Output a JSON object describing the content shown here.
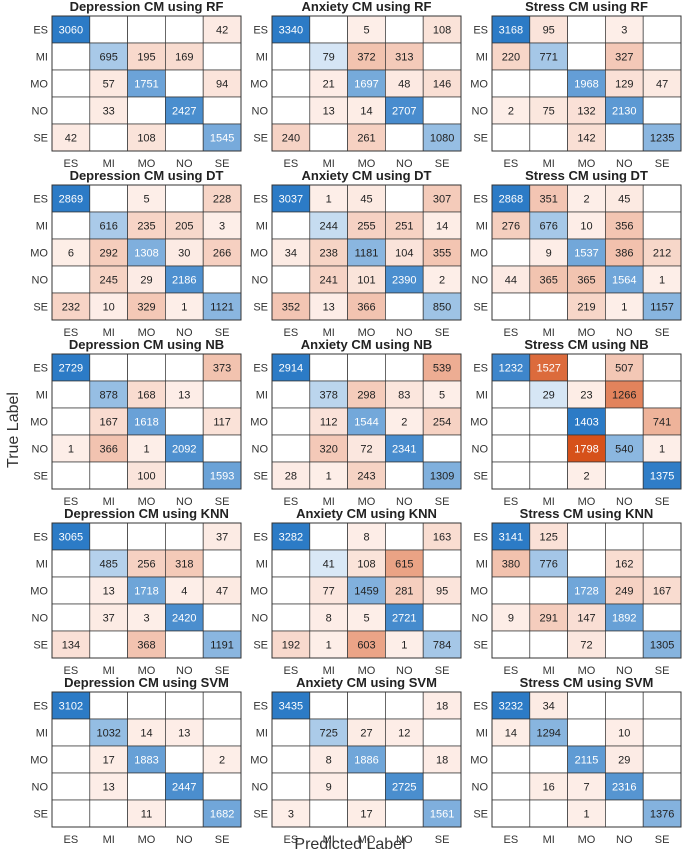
{
  "figure": {
    "xlabel": "Predicted Label",
    "ylabel": "True Label"
  },
  "chart_data": [
    {
      "type": "heatmap",
      "title": "Depression CM using RF",
      "classes": [
        "ES",
        "MI",
        "MO",
        "NO",
        "SE"
      ],
      "matrix": [
        [
          3060,
          null,
          null,
          null,
          42
        ],
        [
          null,
          695,
          195,
          169,
          null
        ],
        [
          null,
          57,
          1751,
          null,
          94
        ],
        [
          null,
          33,
          null,
          2427,
          null
        ],
        [
          42,
          null,
          108,
          null,
          1545
        ]
      ]
    },
    {
      "type": "heatmap",
      "title": "Anxiety CM using RF",
      "classes": [
        "ES",
        "MI",
        "MO",
        "NO",
        "SE"
      ],
      "matrix": [
        [
          3340,
          null,
          5,
          null,
          108
        ],
        [
          null,
          79,
          372,
          313,
          null
        ],
        [
          null,
          21,
          1697,
          48,
          146
        ],
        [
          null,
          13,
          14,
          2707,
          null
        ],
        [
          240,
          null,
          261,
          null,
          1080
        ]
      ]
    },
    {
      "type": "heatmap",
      "title": "Stress CM using RF",
      "classes": [
        "ES",
        "MI",
        "MO",
        "NO",
        "SE"
      ],
      "matrix": [
        [
          3168,
          95,
          null,
          3,
          null
        ],
        [
          220,
          771,
          null,
          327,
          null
        ],
        [
          null,
          null,
          1968,
          129,
          47
        ],
        [
          2,
          75,
          132,
          2130,
          null
        ],
        [
          null,
          null,
          142,
          null,
          1235
        ]
      ]
    },
    {
      "type": "heatmap",
      "title": "Depression CM using DT",
      "classes": [
        "ES",
        "MI",
        "MO",
        "NO",
        "SE"
      ],
      "matrix": [
        [
          2869,
          null,
          5,
          null,
          228
        ],
        [
          null,
          616,
          235,
          205,
          3
        ],
        [
          6,
          292,
          1308,
          30,
          266
        ],
        [
          null,
          245,
          29,
          2186,
          null
        ],
        [
          232,
          10,
          329,
          1,
          1121
        ]
      ]
    },
    {
      "type": "heatmap",
      "title": "Anxiety CM using DT",
      "classes": [
        "ES",
        "MI",
        "MO",
        "NO",
        "SE"
      ],
      "matrix": [
        [
          3037,
          1,
          45,
          null,
          307
        ],
        [
          null,
          244,
          255,
          251,
          14
        ],
        [
          34,
          238,
          1181,
          104,
          355
        ],
        [
          null,
          241,
          101,
          2390,
          2
        ],
        [
          352,
          13,
          366,
          null,
          850
        ]
      ]
    },
    {
      "type": "heatmap",
      "title": "Stress CM using DT",
      "classes": [
        "ES",
        "MI",
        "MO",
        "NO",
        "SE"
      ],
      "matrix": [
        [
          2868,
          351,
          2,
          45,
          null
        ],
        [
          276,
          676,
          10,
          356,
          null
        ],
        [
          null,
          9,
          1537,
          386,
          212
        ],
        [
          44,
          365,
          365,
          1564,
          1
        ],
        [
          null,
          null,
          219,
          1,
          1157
        ]
      ]
    },
    {
      "type": "heatmap",
      "title": "Depression CM using NB",
      "classes": [
        "ES",
        "MI",
        "MO",
        "NO",
        "SE"
      ],
      "matrix": [
        [
          2729,
          null,
          null,
          null,
          373
        ],
        [
          null,
          878,
          168,
          13,
          null
        ],
        [
          null,
          167,
          1618,
          null,
          117
        ],
        [
          1,
          366,
          1,
          2092,
          null
        ],
        [
          null,
          null,
          100,
          null,
          1593
        ]
      ]
    },
    {
      "type": "heatmap",
      "title": "Anxiety CM using NB",
      "classes": [
        "ES",
        "MI",
        "MO",
        "NO",
        "SE"
      ],
      "matrix": [
        [
          2914,
          null,
          null,
          null,
          539
        ],
        [
          null,
          378,
          298,
          83,
          5
        ],
        [
          null,
          112,
          1544,
          2,
          254
        ],
        [
          null,
          320,
          72,
          2341,
          null
        ],
        [
          28,
          1,
          243,
          null,
          1309
        ]
      ]
    },
    {
      "type": "heatmap",
      "title": "Stress CM using NB",
      "classes": [
        "ES",
        "MI",
        "MO",
        "NO",
        "SE"
      ],
      "matrix": [
        [
          1232,
          1527,
          null,
          507,
          null
        ],
        [
          null,
          29,
          23,
          1266,
          null
        ],
        [
          null,
          null,
          1403,
          null,
          741
        ],
        [
          null,
          null,
          1798,
          540,
          1
        ],
        [
          null,
          null,
          2,
          null,
          1375
        ]
      ]
    },
    {
      "type": "heatmap",
      "title": "Depression CM using KNN",
      "classes": [
        "ES",
        "MI",
        "MO",
        "NO",
        "SE"
      ],
      "matrix": [
        [
          3065,
          null,
          null,
          null,
          37
        ],
        [
          null,
          485,
          256,
          318,
          null
        ],
        [
          null,
          13,
          1718,
          4,
          47
        ],
        [
          null,
          37,
          3,
          2420,
          null
        ],
        [
          134,
          null,
          368,
          null,
          1191
        ]
      ]
    },
    {
      "type": "heatmap",
      "title": "Anxiety CM using KNN",
      "classes": [
        "ES",
        "MI",
        "MO",
        "NO",
        "SE"
      ],
      "matrix": [
        [
          3282,
          null,
          8,
          null,
          163
        ],
        [
          null,
          41,
          108,
          615,
          null
        ],
        [
          null,
          77,
          1459,
          281,
          95
        ],
        [
          null,
          8,
          5,
          2721,
          null
        ],
        [
          192,
          1,
          603,
          1,
          784
        ]
      ]
    },
    {
      "type": "heatmap",
      "title": "Stress CM using KNN",
      "classes": [
        "ES",
        "MI",
        "MO",
        "NO",
        "SE"
      ],
      "matrix": [
        [
          3141,
          125,
          null,
          null,
          null
        ],
        [
          380,
          776,
          null,
          162,
          null
        ],
        [
          null,
          null,
          1728,
          249,
          167
        ],
        [
          9,
          291,
          147,
          1892,
          null
        ],
        [
          null,
          null,
          72,
          null,
          1305
        ]
      ]
    },
    {
      "type": "heatmap",
      "title": "Depression CM using SVM",
      "classes": [
        "ES",
        "MI",
        "MO",
        "NO",
        "SE"
      ],
      "matrix": [
        [
          3102,
          null,
          null,
          null,
          null
        ],
        [
          null,
          1032,
          14,
          13,
          null
        ],
        [
          null,
          17,
          1883,
          null,
          2
        ],
        [
          null,
          13,
          null,
          2447,
          null
        ],
        [
          null,
          null,
          11,
          null,
          1682
        ]
      ]
    },
    {
      "type": "heatmap",
      "title": "Anxiety CM using SVM",
      "classes": [
        "ES",
        "MI",
        "MO",
        "NO",
        "SE"
      ],
      "matrix": [
        [
          3435,
          null,
          null,
          null,
          18
        ],
        [
          null,
          725,
          27,
          12,
          null
        ],
        [
          null,
          8,
          1886,
          null,
          18
        ],
        [
          null,
          9,
          null,
          2725,
          null
        ],
        [
          3,
          null,
          17,
          null,
          1561
        ]
      ]
    },
    {
      "type": "heatmap",
      "title": "Stress CM using SVM",
      "classes": [
        "ES",
        "MI",
        "MO",
        "NO",
        "SE"
      ],
      "matrix": [
        [
          3232,
          34,
          null,
          null,
          null
        ],
        [
          14,
          1294,
          null,
          10,
          null
        ],
        [
          null,
          null,
          2115,
          29,
          null
        ],
        [
          null,
          16,
          7,
          2316,
          null
        ],
        [
          null,
          null,
          1,
          null,
          1376
        ]
      ]
    }
  ],
  "colors": {
    "diag_light": "#deebf7",
    "diag_dark": "#2c7bc6",
    "off_light": "#fdeee8",
    "off_dark": "#d6511a",
    "grid": "#333333",
    "axis_text": "#333333",
    "title_text": "#222222"
  }
}
